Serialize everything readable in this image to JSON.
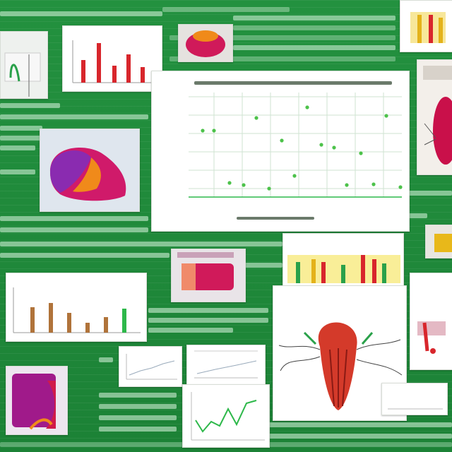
{
  "background_color": "#1f8a3c",
  "panels": [
    {
      "id": "top-left-photo"
    },
    {
      "id": "bar-chart-red"
    },
    {
      "id": "organ-thumb-top"
    },
    {
      "id": "main-scatter"
    },
    {
      "id": "top-right-bars"
    },
    {
      "id": "heart-right"
    },
    {
      "id": "organ-left-large"
    },
    {
      "id": "organ-mid"
    },
    {
      "id": "colored-bars-mid"
    },
    {
      "id": "yellow-thumb-right"
    },
    {
      "id": "bar-chart-brown"
    },
    {
      "id": "heart-illustration"
    },
    {
      "id": "purple-organ-bottom"
    },
    {
      "id": "small-chart-a"
    },
    {
      "id": "small-chart-b"
    },
    {
      "id": "line-chart-bottom"
    },
    {
      "id": "right-diagram-bottom"
    },
    {
      "id": "right-edge-bottom"
    }
  ],
  "colors": {
    "green_accent": "#2db84a",
    "red_bar": "#d8262c",
    "organ_purple": "#8a2bb0",
    "organ_magenta": "#d01a6a",
    "organ_orange": "#f08a1a",
    "yellow": "#f2d21a"
  }
}
